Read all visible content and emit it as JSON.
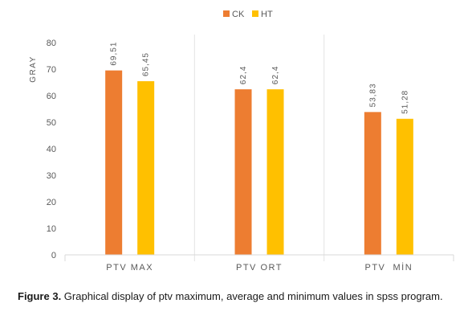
{
  "chart_data": {
    "type": "bar",
    "categories": [
      "PTV MAX",
      "PTV ORT",
      "PTV  MİN"
    ],
    "series": [
      {
        "name": "CK",
        "values": [
          69.51,
          62.4,
          53.83
        ],
        "labels": [
          "69,51",
          "62,4",
          "53,83"
        ],
        "color": "#ED7D31"
      },
      {
        "name": "HT",
        "values": [
          65.45,
          62.4,
          51.28
        ],
        "labels": [
          "65,45",
          "62,4",
          "51,28"
        ],
        "color": "#FFC000"
      }
    ],
    "ylabel": "GRAY",
    "ylim": [
      0,
      80
    ],
    "yticks": [
      0,
      10,
      20,
      30,
      40,
      50,
      60,
      70,
      80
    ],
    "grid": false,
    "legend_position": "top"
  },
  "caption": {
    "label": "Figure 3.",
    "text": " Graphical display of ptv maximum, average and minimum values in spss program."
  }
}
